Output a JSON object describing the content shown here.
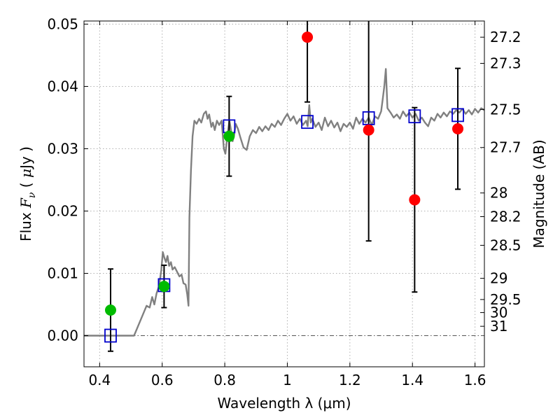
{
  "chart_data": {
    "type": "scatter",
    "xlabel": "Wavelength  λ (μm)",
    "ylabel": "Flux  F_ν  ( μJy )",
    "ylabel_parts": {
      "pre": "Flux  ",
      "F": "F",
      "nu": "ν",
      "mid": "  ( ",
      "mu": "μ",
      "post": "Jy )"
    },
    "y2label": "Magnitude (AB)",
    "xlim": [
      0.35,
      1.63
    ],
    "ylim": [
      -0.005,
      0.0505
    ],
    "grid": true,
    "x_ticks": [
      0.4,
      0.6,
      0.8,
      1.0,
      1.2,
      1.4,
      1.6
    ],
    "x_tick_labels": [
      "0.4",
      "0.6",
      "0.8",
      "1",
      "1.2",
      "1.4",
      "1.6"
    ],
    "y_ticks": [
      0.0,
      0.01,
      0.02,
      0.03,
      0.04,
      0.05
    ],
    "y_tick_labels": [
      "0.00",
      "0.01",
      "0.02",
      "0.03",
      "0.04",
      "0.05"
    ],
    "mag_ticks": [
      {
        "label": "27.2",
        "flux": 0.0479
      },
      {
        "label": "27.3",
        "flux": 0.0437
      },
      {
        "label": "27.5",
        "flux": 0.0363
      },
      {
        "label": "27.7",
        "flux": 0.0302
      },
      {
        "label": "28",
        "flux": 0.0229
      },
      {
        "label": "28.2",
        "flux": 0.0191
      },
      {
        "label": "28.5",
        "flux": 0.0145
      },
      {
        "label": "29",
        "flux": 0.0092
      },
      {
        "label": "29.5",
        "flux": 0.0058
      },
      {
        "label": "30",
        "flux": 0.0037
      },
      {
        "label": "31",
        "flux": 0.0015
      }
    ],
    "colors": {
      "model": "#808080",
      "model_points": "#0000cc",
      "detections": "#00bb00",
      "upper_points": "#ff0000",
      "errorbar": "#000000",
      "grid": "#b0b0b0",
      "zero_line": "#555555"
    },
    "series": [
      {
        "points": [
          {
            "x": 0.435,
            "y": 0.0041,
            "err": 0.0066
          },
          {
            "x": 0.606,
            "y": 0.0079,
            "err": 0.0034
          },
          {
            "x": 0.814,
            "y": 0.032,
            "err": 0.0064
          }
        ]
      },
      {
        "points": [
          {
            "x": 1.064,
            "y": 0.0479,
            "err": 0.0104
          },
          {
            "x": 1.26,
            "y": 0.033,
            "err": 0.0178
          },
          {
            "x": 1.407,
            "y": 0.0218,
            "err": 0.0148
          },
          {
            "x": 1.545,
            "y": 0.0332,
            "err": 0.0097
          }
        ]
      },
      {
        "points": [
          {
            "x": 0.435,
            "y": 0.0
          },
          {
            "x": 0.606,
            "y": 0.0081
          },
          {
            "x": 0.814,
            "y": 0.0336
          },
          {
            "x": 1.064,
            "y": 0.0343
          },
          {
            "x": 1.26,
            "y": 0.0349
          },
          {
            "x": 1.407,
            "y": 0.0352
          },
          {
            "x": 1.545,
            "y": 0.0354
          }
        ]
      },
      {
        "line": [
          [
            0.35,
            0.0
          ],
          [
            0.51,
            0.0
          ],
          [
            0.52,
            0.0012
          ],
          [
            0.535,
            0.003
          ],
          [
            0.55,
            0.0048
          ],
          [
            0.56,
            0.0045
          ],
          [
            0.568,
            0.0062
          ],
          [
            0.575,
            0.005
          ],
          [
            0.582,
            0.0068
          ],
          [
            0.59,
            0.008
          ],
          [
            0.597,
            0.0105
          ],
          [
            0.602,
            0.0134
          ],
          [
            0.607,
            0.0125
          ],
          [
            0.612,
            0.0118
          ],
          [
            0.617,
            0.0128
          ],
          [
            0.622,
            0.0112
          ],
          [
            0.628,
            0.0118
          ],
          [
            0.633,
            0.0106
          ],
          [
            0.64,
            0.011
          ],
          [
            0.648,
            0.0102
          ],
          [
            0.655,
            0.0095
          ],
          [
            0.662,
            0.0098
          ],
          [
            0.668,
            0.0084
          ],
          [
            0.675,
            0.0082
          ],
          [
            0.68,
            0.0066
          ],
          [
            0.684,
            0.0048
          ],
          [
            0.687,
            0.019
          ],
          [
            0.692,
            0.0265
          ],
          [
            0.697,
            0.032
          ],
          [
            0.703,
            0.0345
          ],
          [
            0.71,
            0.034
          ],
          [
            0.718,
            0.0348
          ],
          [
            0.725,
            0.0342
          ],
          [
            0.733,
            0.0356
          ],
          [
            0.74,
            0.036
          ],
          [
            0.745,
            0.0348
          ],
          [
            0.75,
            0.0355
          ],
          [
            0.757,
            0.0335
          ],
          [
            0.762,
            0.0342
          ],
          [
            0.768,
            0.033
          ],
          [
            0.775,
            0.0345
          ],
          [
            0.782,
            0.0338
          ],
          [
            0.79,
            0.0345
          ],
          [
            0.797,
            0.03
          ],
          [
            0.802,
            0.0292
          ],
          [
            0.806,
            0.031
          ],
          [
            0.81,
            0.0328
          ],
          [
            0.815,
            0.0345
          ],
          [
            0.82,
            0.033
          ],
          [
            0.825,
            0.0312
          ],
          [
            0.83,
            0.0322
          ],
          [
            0.835,
            0.034
          ],
          [
            0.842,
            0.0332
          ],
          [
            0.85,
            0.0318
          ],
          [
            0.86,
            0.0302
          ],
          [
            0.87,
            0.0298
          ],
          [
            0.88,
            0.032
          ],
          [
            0.89,
            0.033
          ],
          [
            0.9,
            0.0325
          ],
          [
            0.91,
            0.0335
          ],
          [
            0.92,
            0.0328
          ],
          [
            0.93,
            0.0336
          ],
          [
            0.94,
            0.033
          ],
          [
            0.95,
            0.034
          ],
          [
            0.96,
            0.0335
          ],
          [
            0.97,
            0.0345
          ],
          [
            0.98,
            0.0338
          ],
          [
            0.99,
            0.0348
          ],
          [
            1.0,
            0.0356
          ],
          [
            1.01,
            0.0345
          ],
          [
            1.02,
            0.0352
          ],
          [
            1.03,
            0.034
          ],
          [
            1.04,
            0.0348
          ],
          [
            1.05,
            0.0338
          ],
          [
            1.06,
            0.0345
          ],
          [
            1.065,
            0.0336
          ],
          [
            1.07,
            0.037
          ],
          [
            1.075,
            0.0342
          ],
          [
            1.08,
            0.0348
          ],
          [
            1.09,
            0.0335
          ],
          [
            1.1,
            0.0342
          ],
          [
            1.11,
            0.033
          ],
          [
            1.12,
            0.035
          ],
          [
            1.13,
            0.0336
          ],
          [
            1.14,
            0.0345
          ],
          [
            1.15,
            0.0334
          ],
          [
            1.16,
            0.0342
          ],
          [
            1.17,
            0.0328
          ],
          [
            1.18,
            0.034
          ],
          [
            1.19,
            0.0335
          ],
          [
            1.2,
            0.0342
          ],
          [
            1.21,
            0.0332
          ],
          [
            1.22,
            0.035
          ],
          [
            1.23,
            0.034
          ],
          [
            1.24,
            0.0348
          ],
          [
            1.25,
            0.0342
          ],
          [
            1.26,
            0.035
          ],
          [
            1.27,
            0.0338
          ],
          [
            1.28,
            0.0352
          ],
          [
            1.29,
            0.0348
          ],
          [
            1.3,
            0.036
          ],
          [
            1.305,
            0.038
          ],
          [
            1.31,
            0.04
          ],
          [
            1.315,
            0.0428
          ],
          [
            1.32,
            0.0365
          ],
          [
            1.33,
            0.0358
          ],
          [
            1.34,
            0.035
          ],
          [
            1.35,
            0.0355
          ],
          [
            1.36,
            0.0348
          ],
          [
            1.37,
            0.036
          ],
          [
            1.38,
            0.0352
          ],
          [
            1.39,
            0.0358
          ],
          [
            1.4,
            0.035
          ],
          [
            1.41,
            0.0356
          ],
          [
            1.42,
            0.0345
          ],
          [
            1.43,
            0.035
          ],
          [
            1.44,
            0.0342
          ],
          [
            1.45,
            0.0336
          ],
          [
            1.46,
            0.035
          ],
          [
            1.47,
            0.0345
          ],
          [
            1.48,
            0.0356
          ],
          [
            1.49,
            0.035
          ],
          [
            1.5,
            0.0358
          ],
          [
            1.51,
            0.0352
          ],
          [
            1.52,
            0.036
          ],
          [
            1.53,
            0.0356
          ],
          [
            1.54,
            0.0362
          ],
          [
            1.55,
            0.0358
          ],
          [
            1.56,
            0.0364
          ],
          [
            1.57,
            0.0356
          ],
          [
            1.58,
            0.0362
          ],
          [
            1.59,
            0.0355
          ],
          [
            1.6,
            0.0364
          ],
          [
            1.61,
            0.0358
          ],
          [
            1.62,
            0.0365
          ],
          [
            1.63,
            0.0362
          ]
        ]
      }
    ]
  }
}
